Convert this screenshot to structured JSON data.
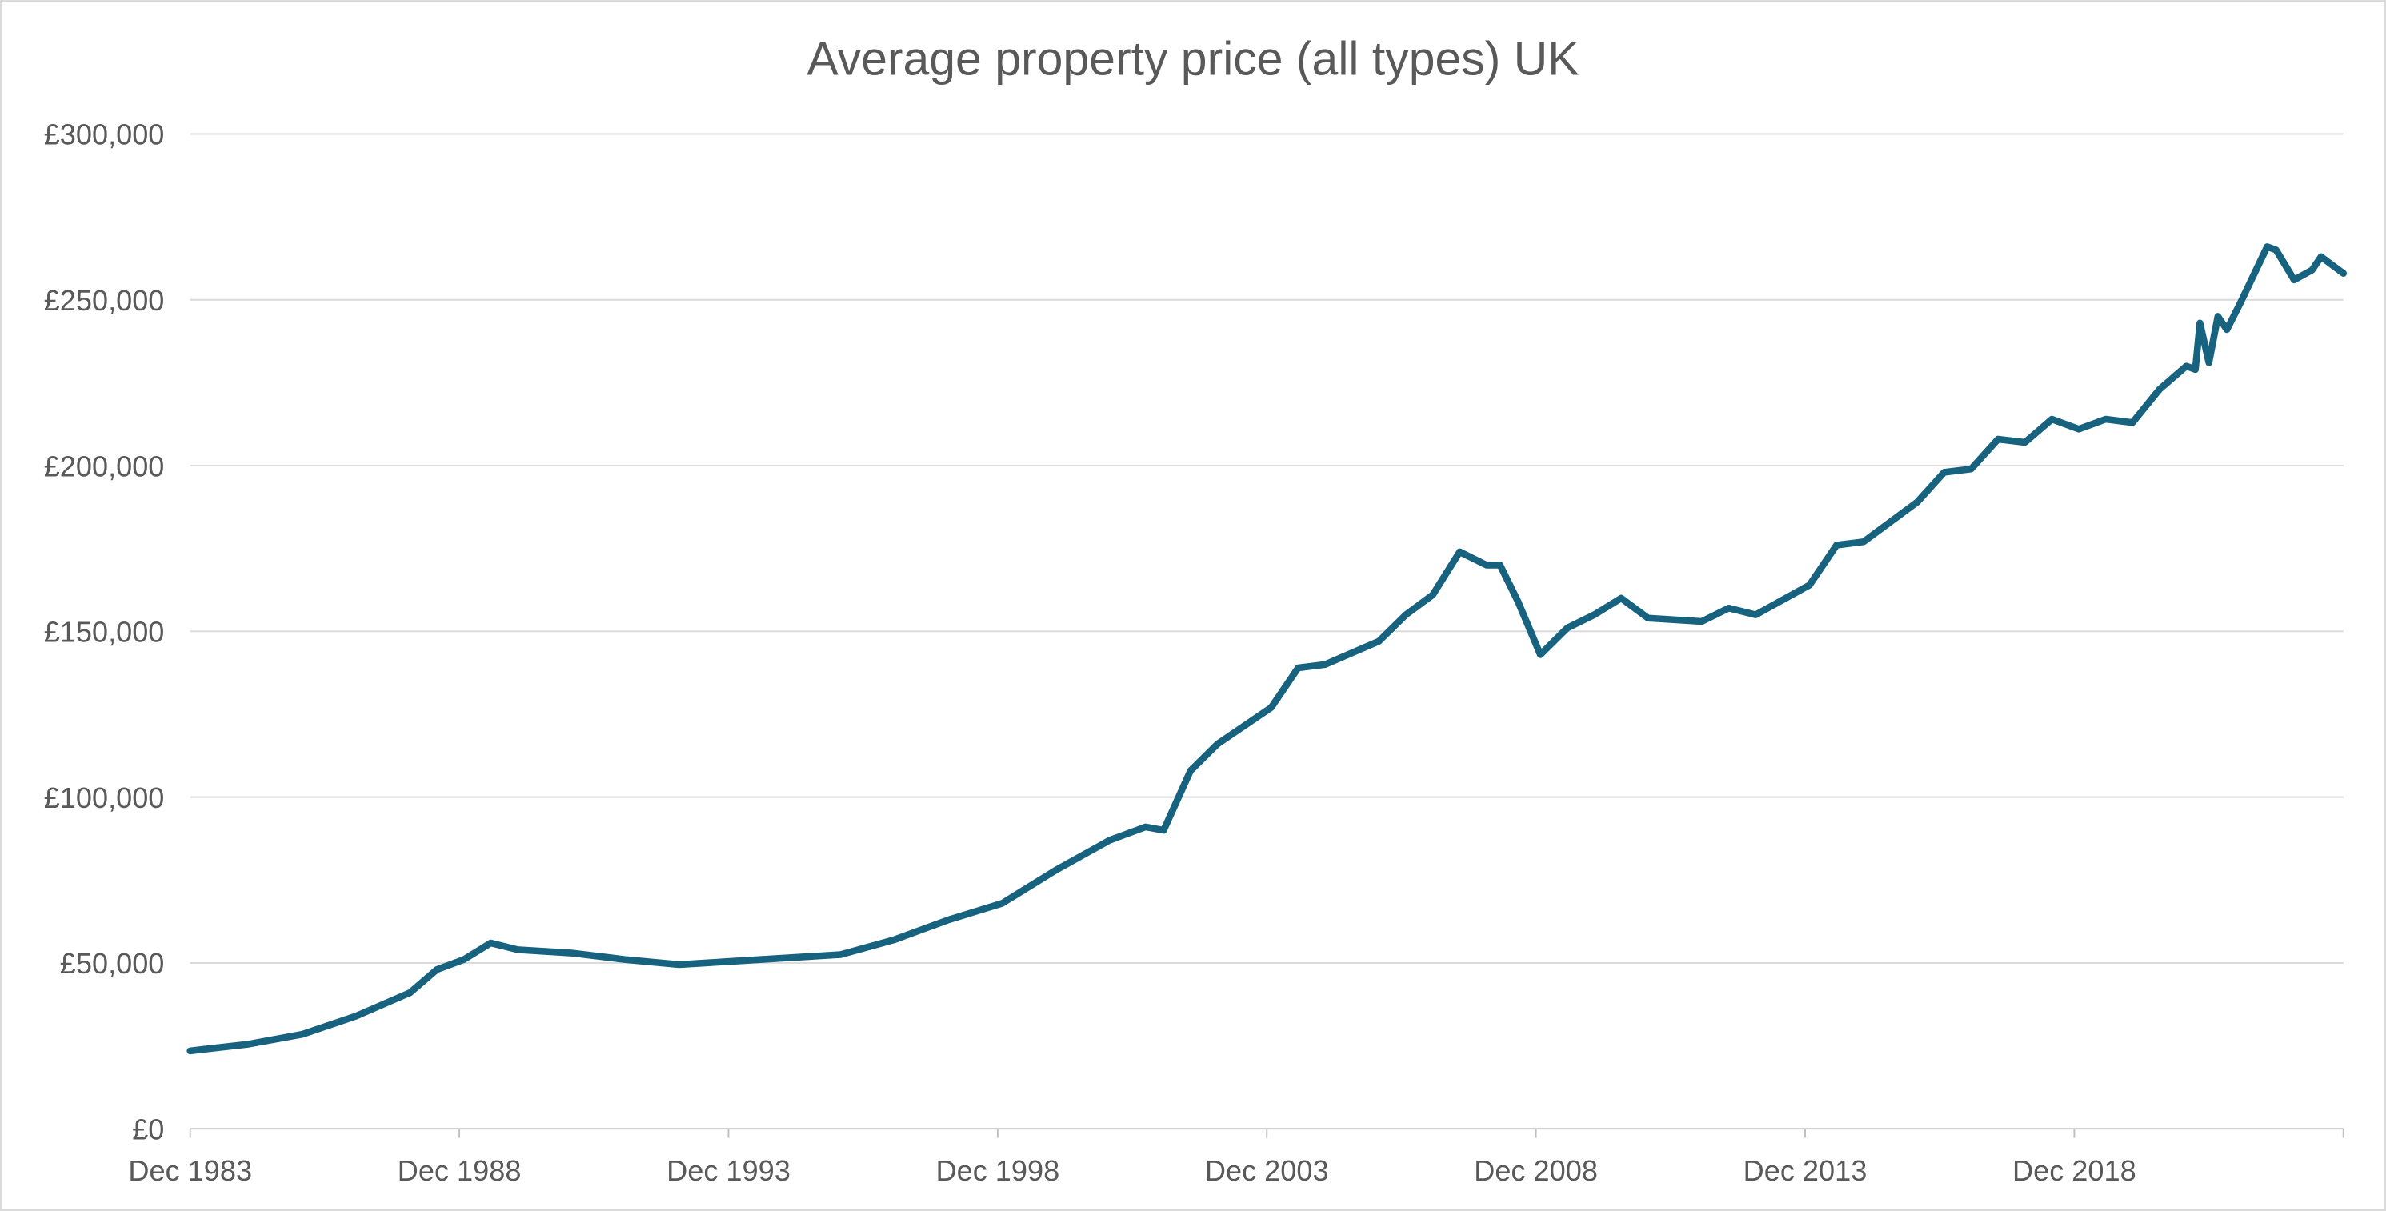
{
  "chart_data": {
    "type": "line",
    "title": "Average property price (all types) UK",
    "xlabel": "",
    "ylabel": "",
    "ylim": [
      0,
      300000
    ],
    "xlim": [
      "1983-12",
      "2023-12"
    ],
    "grid": "horizontal",
    "line_color": "#17627f",
    "y_ticks": [
      {
        "value": 0,
        "label": "£0"
      },
      {
        "value": 50000,
        "label": "£50,000"
      },
      {
        "value": 100000,
        "label": "£100,000"
      },
      {
        "value": 150000,
        "label": "£150,000"
      },
      {
        "value": 200000,
        "label": "£200,000"
      },
      {
        "value": 250000,
        "label": "£250,000"
      },
      {
        "value": 300000,
        "label": "£300,000"
      }
    ],
    "x_ticks": [
      {
        "value": "1983-12",
        "label": "Dec 1983"
      },
      {
        "value": "1988-12",
        "label": "Dec 1988"
      },
      {
        "value": "1993-12",
        "label": "Dec 1993"
      },
      {
        "value": "1998-12",
        "label": "Dec 1998"
      },
      {
        "value": "2003-12",
        "label": "Dec 2003"
      },
      {
        "value": "2008-12",
        "label": "Dec 2008"
      },
      {
        "value": "2013-12",
        "label": "Dec 2013"
      },
      {
        "value": "2018-12",
        "label": "Dec 2018"
      }
    ],
    "series": [
      {
        "points": [
          [
            "1983-12",
            23500
          ],
          [
            "1985-01",
            25500
          ],
          [
            "1986-01",
            28500
          ],
          [
            "1987-01",
            34000
          ],
          [
            "1988-01",
            41000
          ],
          [
            "1988-07",
            48000
          ],
          [
            "1989-01",
            51000
          ],
          [
            "1989-07",
            56000
          ],
          [
            "1990-01",
            54000
          ],
          [
            "1991-01",
            53000
          ],
          [
            "1992-01",
            51000
          ],
          [
            "1993-01",
            49500
          ],
          [
            "1994-01",
            50500
          ],
          [
            "1995-01",
            51500
          ],
          [
            "1996-01",
            52500
          ],
          [
            "1997-01",
            57000
          ],
          [
            "1998-01",
            63000
          ],
          [
            "1999-01",
            68000
          ],
          [
            "2000-01",
            78000
          ],
          [
            "2001-01",
            87000
          ],
          [
            "2001-09",
            91000
          ],
          [
            "2002-01",
            90000
          ],
          [
            "2002-07",
            108000
          ],
          [
            "2003-01",
            116000
          ],
          [
            "2004-01",
            127000
          ],
          [
            "2004-07",
            139000
          ],
          [
            "2005-01",
            140000
          ],
          [
            "2006-01",
            147000
          ],
          [
            "2006-07",
            155000
          ],
          [
            "2007-01",
            161000
          ],
          [
            "2007-07",
            174000
          ],
          [
            "2008-01",
            170000
          ],
          [
            "2008-04",
            170000
          ],
          [
            "2008-08",
            159000
          ],
          [
            "2009-01",
            143000
          ],
          [
            "2009-07",
            151000
          ],
          [
            "2010-01",
            155000
          ],
          [
            "2010-07",
            160000
          ],
          [
            "2011-01",
            154000
          ],
          [
            "2012-01",
            153000
          ],
          [
            "2012-07",
            157000
          ],
          [
            "2013-01",
            155000
          ],
          [
            "2014-01",
            164000
          ],
          [
            "2014-07",
            176000
          ],
          [
            "2015-01",
            177000
          ],
          [
            "2016-01",
            189000
          ],
          [
            "2016-07",
            198000
          ],
          [
            "2017-01",
            199000
          ],
          [
            "2017-07",
            208000
          ],
          [
            "2018-01",
            207000
          ],
          [
            "2018-07",
            214000
          ],
          [
            "2019-01",
            211000
          ],
          [
            "2019-07",
            214000
          ],
          [
            "2020-01",
            213000
          ],
          [
            "2020-07",
            223000
          ],
          [
            "2021-01",
            230000
          ],
          [
            "2021-03",
            229000
          ],
          [
            "2021-04",
            243000
          ],
          [
            "2021-06",
            231000
          ],
          [
            "2021-08",
            245000
          ],
          [
            "2021-10",
            241000
          ],
          [
            "2022-01",
            249000
          ],
          [
            "2022-07",
            266000
          ],
          [
            "2022-09",
            265000
          ],
          [
            "2023-01",
            256000
          ],
          [
            "2023-05",
            259000
          ],
          [
            "2023-07",
            263000
          ],
          [
            "2023-12",
            258000
          ]
        ]
      }
    ]
  }
}
